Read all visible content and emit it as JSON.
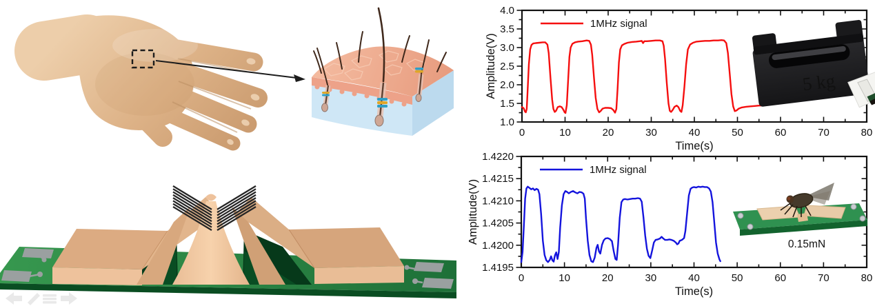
{
  "figure": {
    "type": "paper-figure",
    "background": "#ffffff",
    "illustrations": {
      "hand": {
        "alt": "3D rendered human hand with dashed region marked on the back"
      },
      "skin_inset": {
        "alt": "skin cross-section with hairs and follicle sensors"
      },
      "device": {
        "alt": "biomimetic hair sensor membrane bridge on green PCB"
      }
    }
  },
  "viewer_toolbar": {
    "icons": [
      {
        "name": "back-arrow-icon"
      },
      {
        "name": "pencil-icon"
      },
      {
        "name": "menu-icon"
      },
      {
        "name": "forward-arrow-icon"
      }
    ]
  },
  "colors": {
    "red_series": "#f50f0f",
    "blue_series": "#1414dd",
    "axis": "#111111",
    "pcb_green": "#2f8f4e",
    "membrane_tan": "#e7b98f"
  },
  "chart_data": [
    {
      "type": "line",
      "title": "",
      "xlabel": "Time(s)",
      "ylabel": "Amplitude(V)",
      "xlim": [
        0,
        80
      ],
      "ylim": [
        1.0,
        4.0
      ],
      "xticks": [
        0,
        10,
        20,
        30,
        40,
        50,
        60,
        70,
        80
      ],
      "xtick_labels": [
        "0",
        "10",
        "20",
        "30",
        "40",
        "50",
        "60",
        "70",
        "80"
      ],
      "xticks_minor": [
        5,
        15,
        25,
        35,
        45,
        55,
        65,
        75
      ],
      "yticks": [
        1.0,
        1.5,
        2.0,
        2.5,
        3.0,
        3.5,
        4.0
      ],
      "ytick_labels": [
        "1.0",
        "1.5",
        "2.0",
        "2.5",
        "3.0",
        "3.5",
        "4.0"
      ],
      "yticks_minor": [
        1.25,
        1.75,
        2.25,
        2.75,
        3.25,
        3.75
      ],
      "grid": false,
      "legend": {
        "label": "1MHz signal",
        "position": "top-left"
      },
      "inset": {
        "kind": "photo",
        "label": "5 kg",
        "alt": "black 5 kg calibration weight on sensor"
      },
      "series": [
        {
          "name": "1MHz signal",
          "color": "#f50f0f",
          "points": [
            [
              0,
              1.4
            ],
            [
              0.4,
              1.37
            ],
            [
              0.7,
              1.28
            ],
            [
              0.9,
              1.26
            ],
            [
              1.1,
              1.35
            ],
            [
              1.3,
              1.8
            ],
            [
              1.6,
              2.55
            ],
            [
              1.9,
              2.95
            ],
            [
              2.2,
              3.07
            ],
            [
              2.6,
              3.11
            ],
            [
              3.2,
              3.12
            ],
            [
              4,
              3.13
            ],
            [
              4.8,
              3.14
            ],
            [
              5.4,
              3.14
            ],
            [
              5.9,
              3.08
            ],
            [
              6.2,
              2.85
            ],
            [
              6.6,
              2.2
            ],
            [
              7,
              1.6
            ],
            [
              7.3,
              1.35
            ],
            [
              7.6,
              1.27
            ],
            [
              7.9,
              1.3
            ],
            [
              8.3,
              1.4
            ],
            [
              8.8,
              1.42
            ],
            [
              9.2,
              1.4
            ],
            [
              9.6,
              1.33
            ],
            [
              9.9,
              1.26
            ],
            [
              10.1,
              1.24
            ],
            [
              10.4,
              1.45
            ],
            [
              10.7,
              2.1
            ],
            [
              11,
              2.75
            ],
            [
              11.3,
              3.0
            ],
            [
              11.7,
              3.1
            ],
            [
              12.3,
              3.14
            ],
            [
              13,
              3.16
            ],
            [
              14,
              3.17
            ],
            [
              15,
              3.19
            ],
            [
              15.6,
              3.18
            ],
            [
              16,
              3.08
            ],
            [
              16.3,
              2.8
            ],
            [
              16.7,
              2.2
            ],
            [
              17.1,
              1.65
            ],
            [
              17.5,
              1.35
            ],
            [
              17.9,
              1.26
            ],
            [
              18.3,
              1.3
            ],
            [
              18.7,
              1.36
            ],
            [
              19.3,
              1.38
            ],
            [
              20,
              1.38
            ],
            [
              20.7,
              1.37
            ],
            [
              21.2,
              1.32
            ],
            [
              21.6,
              1.25
            ],
            [
              21.9,
              1.35
            ],
            [
              22.2,
              1.9
            ],
            [
              22.5,
              2.6
            ],
            [
              22.8,
              2.95
            ],
            [
              23.2,
              3.06
            ],
            [
              23.8,
              3.1
            ],
            [
              24.5,
              3.13
            ],
            [
              25.5,
              3.15
            ],
            [
              26.5,
              3.16
            ],
            [
              27.3,
              3.17
            ],
            [
              27.8,
              3.18
            ],
            [
              28.1,
              3.12
            ],
            [
              28.4,
              3.17
            ],
            [
              29,
              3.17
            ],
            [
              30,
              3.18
            ],
            [
              31,
              3.19
            ],
            [
              32,
              3.19
            ],
            [
              32.6,
              3.17
            ],
            [
              32.9,
              3.05
            ],
            [
              33.2,
              2.7
            ],
            [
              33.6,
              2.05
            ],
            [
              34,
              1.5
            ],
            [
              34.3,
              1.3
            ],
            [
              34.6,
              1.27
            ],
            [
              35,
              1.33
            ],
            [
              35.4,
              1.41
            ],
            [
              35.9,
              1.44
            ],
            [
              36.3,
              1.4
            ],
            [
              36.7,
              1.3
            ],
            [
              37,
              1.27
            ],
            [
              37.3,
              1.45
            ],
            [
              37.7,
              1.95
            ],
            [
              38.1,
              2.55
            ],
            [
              38.5,
              2.95
            ],
            [
              39,
              3.08
            ],
            [
              39.7,
              3.13
            ],
            [
              40.5,
              3.16
            ],
            [
              41.5,
              3.17
            ],
            [
              42.5,
              3.18
            ],
            [
              43.5,
              3.18
            ],
            [
              44.5,
              3.19
            ],
            [
              45.5,
              3.19
            ],
            [
              46.3,
              3.2
            ],
            [
              46.9,
              3.19
            ],
            [
              47.4,
              3.12
            ],
            [
              47.8,
              2.85
            ],
            [
              48.2,
              2.3
            ],
            [
              48.6,
              1.75
            ],
            [
              49,
              1.42
            ],
            [
              49.4,
              1.29
            ],
            [
              49.8,
              1.31
            ],
            [
              50.3,
              1.36
            ],
            [
              51,
              1.39
            ],
            [
              52,
              1.41
            ],
            [
              53,
              1.42
            ],
            [
              54,
              1.43
            ],
            [
              55,
              1.44
            ],
            [
              55.4,
              1.44
            ]
          ]
        }
      ]
    },
    {
      "type": "line",
      "title": "",
      "xlabel": "Time(s)",
      "ylabel": "Amplitude(V)",
      "xlim": [
        0,
        80
      ],
      "ylim": [
        1.4195,
        1.422
      ],
      "xticks": [
        0,
        10,
        20,
        30,
        40,
        50,
        60,
        70,
        80
      ],
      "xtick_labels": [
        "0",
        "10",
        "20",
        "30",
        "40",
        "50",
        "60",
        "70",
        "80"
      ],
      "xticks_minor": [
        5,
        15,
        25,
        35,
        45,
        55,
        65,
        75
      ],
      "yticks": [
        1.4195,
        1.42,
        1.4205,
        1.421,
        1.4215,
        1.422
      ],
      "ytick_labels": [
        "1.4195",
        "1.4200",
        "1.4205",
        "1.4210",
        "1.4215",
        "1.4220"
      ],
      "yticks_minor": [
        1.41975,
        1.42025,
        1.42075,
        1.42125,
        1.42175
      ],
      "grid": false,
      "legend": {
        "label": "1MHz signal",
        "position": "top-left"
      },
      "inset": {
        "kind": "photo",
        "label": "0.15mN",
        "alt": "fly standing on the membrane sensor PCB"
      },
      "series": [
        {
          "name": "1MHz signal",
          "color": "#1414dd",
          "points": [
            [
              0,
              1.41962
            ],
            [
              0.3,
              1.41985
            ],
            [
              0.6,
              1.42045
            ],
            [
              0.9,
              1.42105
            ],
            [
              1.2,
              1.42128
            ],
            [
              1.5,
              1.42132
            ],
            [
              1.9,
              1.42129
            ],
            [
              2.3,
              1.42126
            ],
            [
              2.7,
              1.42128
            ],
            [
              3.1,
              1.42124
            ],
            [
              3.5,
              1.42127
            ],
            [
              3.9,
              1.42125
            ],
            [
              4.2,
              1.42115
            ],
            [
              4.6,
              1.4207
            ],
            [
              5,
              1.4201
            ],
            [
              5.4,
              1.41978
            ],
            [
              5.8,
              1.41966
            ],
            [
              6.2,
              1.41962
            ],
            [
              6.6,
              1.41967
            ],
            [
              6.9,
              1.41975
            ],
            [
              7.2,
              1.41966
            ],
            [
              7.5,
              1.41963
            ],
            [
              7.8,
              1.41977
            ],
            [
              8.1,
              1.41984
            ],
            [
              8.4,
              1.41969
            ],
            [
              8.7,
              1.41985
            ],
            [
              9,
              1.4204
            ],
            [
              9.4,
              1.4209
            ],
            [
              9.8,
              1.42115
            ],
            [
              10.2,
              1.42122
            ],
            [
              10.6,
              1.4212
            ],
            [
              11,
              1.42117
            ],
            [
              11.5,
              1.4212
            ],
            [
              12,
              1.42122
            ],
            [
              12.5,
              1.42119
            ],
            [
              13,
              1.42117
            ],
            [
              13.5,
              1.4212
            ],
            [
              14,
              1.42119
            ],
            [
              14.4,
              1.42116
            ],
            [
              14.7,
              1.42105
            ],
            [
              15,
              1.4206
            ],
            [
              15.4,
              1.4201
            ],
            [
              15.8,
              1.41978
            ],
            [
              16.2,
              1.41964
            ],
            [
              16.6,
              1.41962
            ],
            [
              17,
              1.41972
            ],
            [
              17.4,
              1.41994
            ],
            [
              17.7,
              1.42001
            ],
            [
              18,
              1.41986
            ],
            [
              18.3,
              1.41981
            ],
            [
              18.7,
              1.42001
            ],
            [
              19.1,
              1.42011
            ],
            [
              19.5,
              1.42015
            ],
            [
              20,
              1.42016
            ],
            [
              20.5,
              1.42014
            ],
            [
              21,
              1.42009
            ],
            [
              21.4,
              1.41987
            ],
            [
              21.8,
              1.41969
            ],
            [
              22.1,
              1.41967
            ],
            [
              22.4,
              1.42
            ],
            [
              22.8,
              1.42062
            ],
            [
              23.2,
              1.42097
            ],
            [
              23.6,
              1.42103
            ],
            [
              24,
              1.42104
            ],
            [
              24.6,
              1.42103
            ],
            [
              25.2,
              1.42104
            ],
            [
              25.8,
              1.42105
            ],
            [
              26.4,
              1.42105
            ],
            [
              27,
              1.42106
            ],
            [
              27.5,
              1.42105
            ],
            [
              27.9,
              1.42098
            ],
            [
              28.3,
              1.42063
            ],
            [
              28.7,
              1.42022
            ],
            [
              29.1,
              1.41992
            ],
            [
              29.5,
              1.41976
            ],
            [
              29.9,
              1.41971
            ],
            [
              30.3,
              1.41988
            ],
            [
              30.7,
              1.42006
            ],
            [
              31.1,
              1.42012
            ],
            [
              31.6,
              1.42013
            ],
            [
              32.1,
              1.42015
            ],
            [
              32.5,
              1.42019
            ],
            [
              32.9,
              1.42015
            ],
            [
              33.3,
              1.42012
            ],
            [
              33.8,
              1.42012
            ],
            [
              34.3,
              1.42013
            ],
            [
              34.8,
              1.42012
            ],
            [
              35.3,
              1.4201
            ],
            [
              35.8,
              1.42006
            ],
            [
              36.1,
              1.42002
            ],
            [
              36.4,
              1.42004
            ],
            [
              36.7,
              1.4201
            ],
            [
              37.2,
              1.42012
            ],
            [
              37.7,
              1.42016
            ],
            [
              38,
              1.42032
            ],
            [
              38.4,
              1.42072
            ],
            [
              38.8,
              1.42112
            ],
            [
              39.2,
              1.42127
            ],
            [
              39.6,
              1.4213
            ],
            [
              40,
              1.42131
            ],
            [
              40.5,
              1.4213
            ],
            [
              41,
              1.42132
            ],
            [
              41.5,
              1.42131
            ],
            [
              42,
              1.42132
            ],
            [
              42.5,
              1.42131
            ],
            [
              43,
              1.42131
            ],
            [
              43.5,
              1.42128
            ],
            [
              43.9,
              1.42121
            ],
            [
              44.3,
              1.42097
            ],
            [
              44.7,
              1.42052
            ],
            [
              45.1,
              1.42006
            ],
            [
              45.5,
              1.41981
            ],
            [
              45.9,
              1.41968
            ],
            [
              46.1,
              1.41964
            ]
          ]
        }
      ]
    }
  ]
}
